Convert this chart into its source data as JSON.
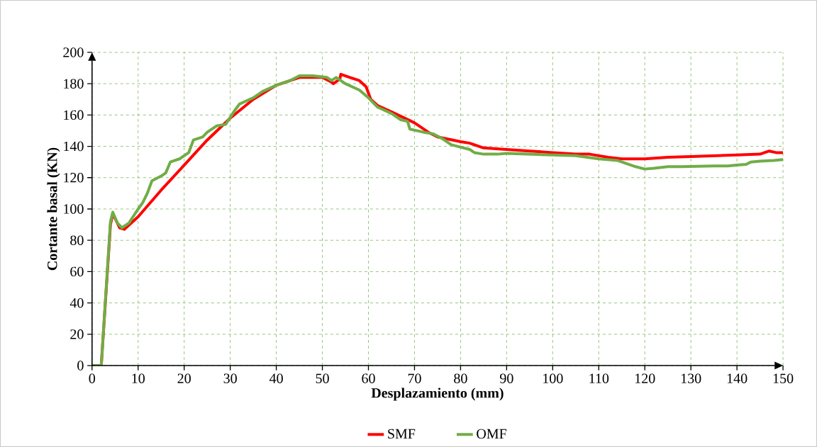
{
  "chart_data": {
    "type": "line",
    "xlabel": "Desplazamiento (mm)",
    "ylabel": "Cortante basal (KN)",
    "xlim": [
      0,
      150
    ],
    "ylim": [
      0,
      200
    ],
    "xticks": [
      0,
      10,
      20,
      30,
      40,
      50,
      60,
      70,
      80,
      90,
      100,
      110,
      120,
      130,
      140,
      150
    ],
    "yticks": [
      0,
      20,
      40,
      60,
      80,
      100,
      120,
      140,
      160,
      180,
      200
    ],
    "grid": true,
    "legend": "bottom",
    "series": [
      {
        "name": "SMF",
        "color": "#ff0000",
        "x": [
          0,
          2,
          4,
          4.5,
          6,
          7,
          10,
          15,
          20,
          25,
          30,
          35,
          40,
          45,
          50,
          52,
          52.4,
          53.8,
          54,
          56,
          58,
          59.5,
          60.5,
          62,
          65,
          70,
          73,
          75,
          80,
          82,
          85,
          90,
          95,
          100,
          105,
          108,
          112,
          115,
          120,
          125,
          130,
          140,
          145,
          147,
          148.5,
          150
        ],
        "values": [
          0,
          0,
          90,
          97,
          88,
          87,
          95,
          112,
          128,
          144,
          158,
          170,
          179,
          184,
          184,
          181,
          180,
          183,
          186,
          184,
          182,
          178,
          170,
          166,
          162,
          155,
          149,
          146,
          143,
          142,
          139,
          138,
          137,
          136,
          135,
          135,
          133,
          132,
          132,
          133,
          133.5,
          134.5,
          135,
          137,
          136,
          136
        ]
      },
      {
        "name": "OMF",
        "color": "#70ad47",
        "x": [
          0,
          2,
          4,
          4.5,
          5.5,
          6.5,
          8,
          10,
          11,
          12,
          13,
          15,
          16,
          17,
          19,
          21,
          22,
          24,
          25,
          27,
          29,
          31,
          32,
          35,
          37,
          40,
          43,
          45,
          48,
          51,
          52,
          53,
          55,
          58,
          60,
          62,
          65,
          67,
          68.5,
          69,
          72,
          74,
          76,
          78,
          82,
          83,
          85,
          88,
          90,
          100,
          105,
          110,
          114,
          116,
          118,
          120,
          122,
          125,
          128,
          135,
          138,
          140,
          142,
          143,
          145,
          148,
          150
        ],
        "values": [
          0,
          0,
          92,
          98,
          91,
          88,
          91,
          100,
          104,
          110,
          118,
          121,
          123,
          130,
          132,
          136,
          144,
          146,
          149,
          153,
          154,
          163,
          167,
          171,
          175,
          179,
          182,
          185,
          185,
          184,
          182,
          184,
          180,
          176,
          171,
          165,
          161,
          157,
          156,
          151,
          149,
          148,
          145,
          141,
          138,
          136,
          135,
          135,
          135.5,
          134.5,
          134,
          132,
          131,
          129,
          127,
          125.5,
          126,
          127,
          127,
          127.5,
          127.5,
          128,
          128.5,
          130,
          130.5,
          131,
          131.5
        ]
      }
    ]
  }
}
